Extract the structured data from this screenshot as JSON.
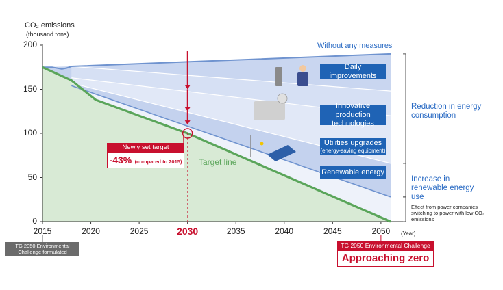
{
  "chart_data": {
    "type": "area",
    "ylabel": "CO₂ emissions",
    "ylabel_unit": "(thousand tons)",
    "xlabel_unit": "(Year)",
    "xlim": [
      2015,
      2051
    ],
    "ylim": [
      0,
      200
    ],
    "x_ticks": [
      "2015",
      "2020",
      "2025",
      "2030",
      "2035",
      "2040",
      "2045",
      "2050"
    ],
    "y_ticks": [
      "200",
      "150",
      "100",
      "50",
      "0"
    ],
    "highlight_year": "2030",
    "series": [
      {
        "name": "Without any measures",
        "x": [
          2015,
          2016,
          2017,
          2017.5,
          2018,
          2051
        ],
        "y": [
          175,
          175,
          173,
          174,
          176,
          190
        ]
      },
      {
        "name": "Target line",
        "x": [
          2015,
          2018,
          2020.5,
          2030,
          2051
        ],
        "y": [
          175,
          160,
          138,
          100,
          0
        ]
      }
    ],
    "wedge_boundaries": [
      {
        "x": [
          2018,
          2051
        ],
        "y": [
          176,
          148
        ]
      },
      {
        "x": [
          2018,
          2051
        ],
        "y": [
          163,
          120
        ]
      },
      {
        "x": [
          2018,
          2051
        ],
        "y": [
          157,
          66
        ]
      },
      {
        "x": [
          2018,
          2051
        ],
        "y": [
          154,
          28
        ]
      }
    ],
    "wedges": [
      {
        "label": "Daily improvements",
        "sub": ""
      },
      {
        "label": "Innovative production technologies",
        "sub": ""
      },
      {
        "label": "Utilities upgrades",
        "sub": "(energy-saving equipment)"
      },
      {
        "label": "Renewable energy",
        "sub": ""
      }
    ],
    "annotations": {
      "target_badge": "Newly set target",
      "target_value": "-43%",
      "target_note": "(compared to 2015)",
      "target_line_label": "Target line",
      "without_label": "Without any measures",
      "reduction_label": "Reduction in energy consumption",
      "increase_label": "Increase in renewable energy use",
      "power_note": "Effect from power companies switching to power with low CO₂ emissions",
      "formulated_label": "TG 2050 Environmental Challenge formulated",
      "challenge_label": "TG 2050 Environmental Challenge",
      "approaching_zero": "Approaching zero"
    },
    "colors": {
      "line_without": "#6f93cf",
      "line_target": "#5aa55a",
      "fill_target": "#d8ead5",
      "fill_band1": "#c9d6f0",
      "fill_band2": "#d6e0f4",
      "fill_band3": "#e1e8f7",
      "fill_band4": "#c4d2ee",
      "fill_band5": "#eef2fa",
      "accent_red": "#c8102e",
      "box_blue": "#1f63b5"
    }
  }
}
